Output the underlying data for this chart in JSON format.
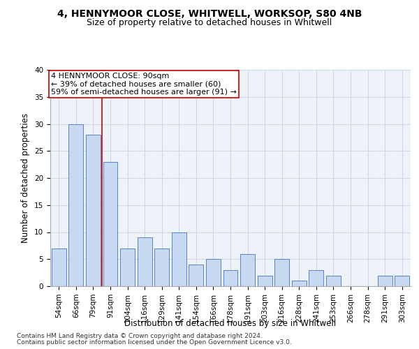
{
  "title1": "4, HENNYMOOR CLOSE, WHITWELL, WORKSOP, S80 4NB",
  "title2": "Size of property relative to detached houses in Whitwell",
  "xlabel": "Distribution of detached houses by size in Whitwell",
  "ylabel": "Number of detached properties",
  "categories": [
    "54sqm",
    "66sqm",
    "79sqm",
    "91sqm",
    "104sqm",
    "116sqm",
    "129sqm",
    "141sqm",
    "154sqm",
    "166sqm",
    "178sqm",
    "191sqm",
    "203sqm",
    "216sqm",
    "228sqm",
    "241sqm",
    "253sqm",
    "266sqm",
    "278sqm",
    "291sqm",
    "303sqm"
  ],
  "values": [
    7,
    30,
    28,
    23,
    7,
    9,
    7,
    10,
    4,
    5,
    3,
    6,
    2,
    5,
    1,
    3,
    2,
    0,
    0,
    2,
    2
  ],
  "bar_color": "#c6d9f0",
  "bar_edge_color": "#4472c4",
  "vline_bar_index": 2,
  "annotation_text": "4 HENNYMOOR CLOSE: 90sqm\n← 39% of detached houses are smaller (60)\n59% of semi-detached houses are larger (91) →",
  "footnote1": "Contains HM Land Registry data © Crown copyright and database right 2024.",
  "footnote2": "Contains public sector information licensed under the Open Government Licence v3.0.",
  "ylim": [
    0,
    40
  ],
  "yticks": [
    0,
    5,
    10,
    15,
    20,
    25,
    30,
    35,
    40
  ],
  "vline_color": "#cc0000",
  "box_edge_color": "#cc0000",
  "grid_color": "#d0d8e8",
  "bg_color": "#eef2f9",
  "title1_fontsize": 10,
  "title2_fontsize": 9,
  "axis_label_fontsize": 8.5,
  "tick_fontsize": 7.5,
  "annotation_fontsize": 8,
  "footnote_fontsize": 6.5
}
